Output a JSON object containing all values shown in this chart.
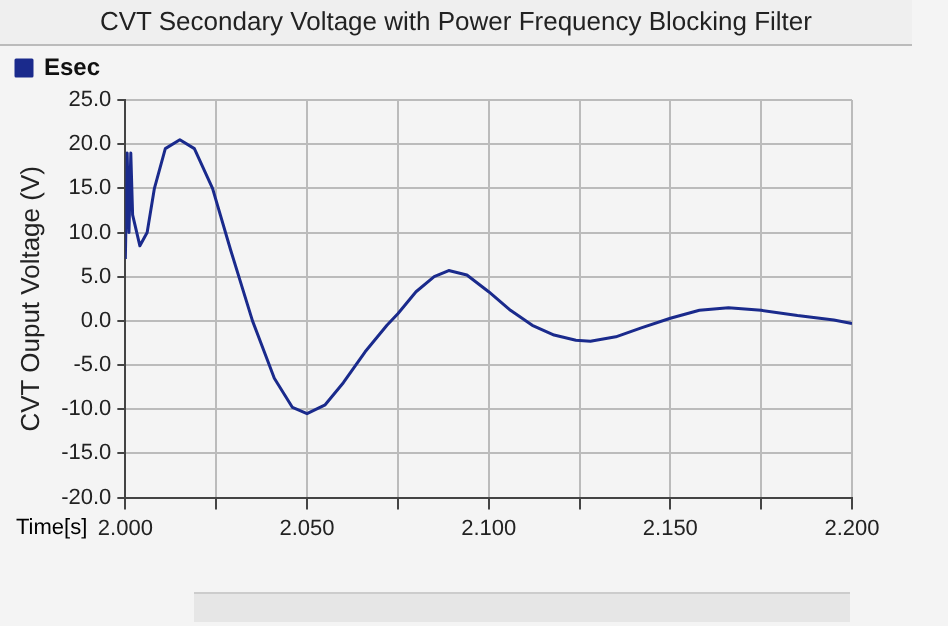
{
  "chart_data": {
    "type": "line",
    "title": "CVT Secondary Voltage with Power Frequency Blocking Filter",
    "xlabel": "Time[s]",
    "ylabel": "CVT Ouput Voltage (V)",
    "series": [
      {
        "name": "Esec",
        "color": "#1a2a8c",
        "x": [
          2.0,
          2.0005,
          2.001,
          2.0015,
          2.002,
          2.004,
          2.006,
          2.008,
          2.011,
          2.015,
          2.019,
          2.024,
          2.029,
          2.035,
          2.041,
          2.046,
          2.05,
          2.055,
          2.06,
          2.066,
          2.072,
          2.075,
          2.08,
          2.085,
          2.089,
          2.094,
          2.1,
          2.106,
          2.112,
          2.118,
          2.124,
          2.128,
          2.135,
          2.142,
          2.15,
          2.158,
          2.166,
          2.175,
          2.185,
          2.195,
          2.2
        ],
        "values": [
          7,
          19,
          10,
          19,
          12,
          8.5,
          10,
          15,
          19.5,
          20.5,
          19.5,
          15,
          8,
          0,
          -6.5,
          -9.8,
          -10.5,
          -9.5,
          -7,
          -3.5,
          -0.5,
          0.8,
          3.3,
          5.0,
          5.7,
          5.2,
          3.3,
          1.2,
          -0.5,
          -1.6,
          -2.2,
          -2.3,
          -1.8,
          -0.8,
          0.3,
          1.2,
          1.5,
          1.2,
          0.6,
          0.1,
          -0.3
        ]
      }
    ],
    "xlim": [
      2.0,
      2.2
    ],
    "xticks": [
      {
        "value": 2.0,
        "label": "2.000"
      },
      {
        "value": 2.025,
        "label": null
      },
      {
        "value": 2.05,
        "label": "2.050"
      },
      {
        "value": 2.075,
        "label": null
      },
      {
        "value": 2.1,
        "label": "2.100"
      },
      {
        "value": 2.125,
        "label": null
      },
      {
        "value": 2.15,
        "label": "2.150"
      },
      {
        "value": 2.175,
        "label": null
      },
      {
        "value": 2.2,
        "label": "2.200"
      }
    ],
    "ylim": [
      -20,
      25
    ],
    "yticks": [
      {
        "value": -20,
        "label": "-20.0"
      },
      {
        "value": -15,
        "label": "-15.0"
      },
      {
        "value": -10,
        "label": "-10.0"
      },
      {
        "value": -5,
        "label": "-5.0"
      },
      {
        "value": 0,
        "label": "0.0"
      },
      {
        "value": 5,
        "label": "5.0"
      },
      {
        "value": 10,
        "label": "10.0"
      },
      {
        "value": 15,
        "label": "15.0"
      },
      {
        "value": 20,
        "label": "20.0"
      },
      {
        "value": 25,
        "label": "25.0"
      }
    ],
    "grid": true,
    "legend": "top left",
    "marker": "none",
    "line_style": "solid"
  }
}
